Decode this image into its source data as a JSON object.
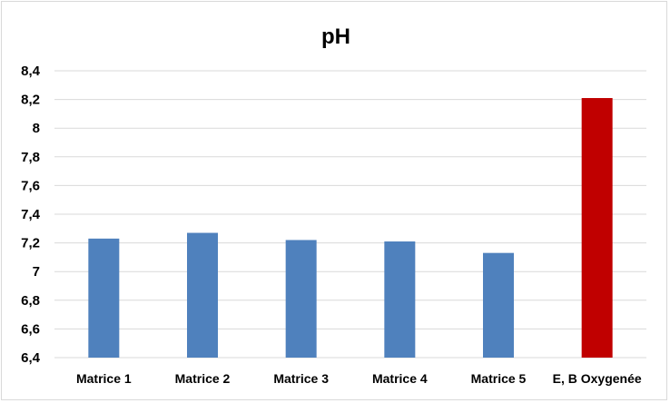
{
  "chart_data": {
    "type": "bar",
    "title": "pH",
    "xlabel": "",
    "ylabel": "",
    "categories": [
      "Matrice 1",
      "Matrice 2",
      "Matrice 3",
      "Matrice 4",
      "Matrice 5",
      "E, B Oxygenée"
    ],
    "values": [
      7.23,
      7.27,
      7.22,
      7.21,
      7.13,
      8.21
    ],
    "ylim": [
      6.4,
      8.4
    ],
    "yticks": [
      "6,4",
      "6,6",
      "6,8",
      "7",
      "7,2",
      "7,4",
      "7,6",
      "7,8",
      "8",
      "8,2",
      "8,4"
    ],
    "grid": true,
    "legend": "none",
    "colors": {
      "default_bar": "#4f81bd",
      "highlight_bar": "#c00000",
      "highlight_index": 5
    }
  }
}
